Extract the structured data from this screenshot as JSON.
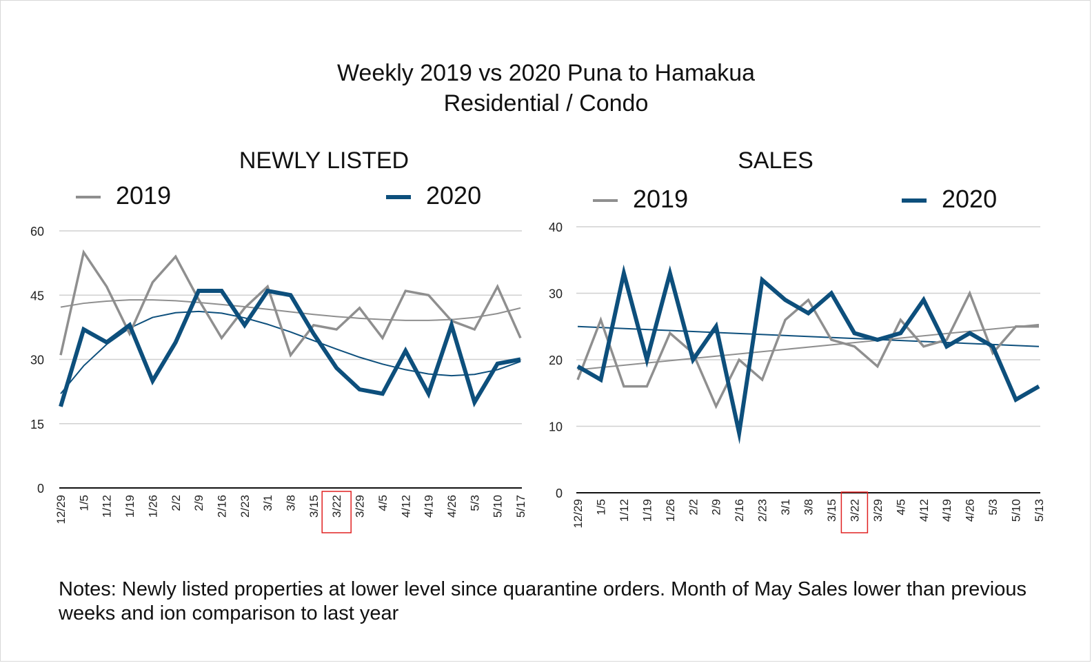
{
  "page": {
    "title_line1": "Weekly 2019 vs 2020 Puna to Hamakua",
    "title_line2": "Residential / Condo",
    "notes": "Notes: Newly listed properties at lower level since quarantine orders. Month of May Sales lower than previous weeks and ion comparison to last year"
  },
  "colors": {
    "series_2019": "#8f8f8f",
    "series_2020": "#0d4f7c",
    "grid": "#d0d0d0",
    "axis": "#111111",
    "highlight_box": "#e02020"
  },
  "chart_data": [
    {
      "type": "line",
      "title": "NEWLY LISTED",
      "categories": [
        "12/29",
        "1/5",
        "1/12",
        "1/19",
        "1/26",
        "2/2",
        "2/9",
        "2/16",
        "2/23",
        "3/1",
        "3/8",
        "3/15",
        "3/22",
        "3/29",
        "4/5",
        "4/12",
        "4/19",
        "4/26",
        "5/3",
        "5/10",
        "5/17"
      ],
      "series": [
        {
          "name": "2019",
          "values": [
            31,
            55,
            47,
            36,
            48,
            54,
            44,
            35,
            42,
            47,
            31,
            38,
            37,
            42,
            35,
            46,
            45,
            39,
            37,
            47,
            35
          ]
        },
        {
          "name": "2020",
          "values": [
            19,
            37,
            34,
            38,
            25,
            34,
            46,
            46,
            38,
            46,
            45,
            36,
            28,
            23,
            22,
            32,
            22,
            38,
            20,
            29,
            30
          ]
        }
      ],
      "trendlines": [
        {
          "series": "2019",
          "kind": "polynomial",
          "values": [
            42.2,
            43.1,
            43.6,
            43.9,
            43.9,
            43.7,
            43.3,
            42.8,
            42.3,
            41.7,
            41.1,
            40.5,
            40.0,
            39.6,
            39.3,
            39.1,
            39.1,
            39.3,
            39.8,
            40.7,
            42.0
          ]
        },
        {
          "series": "2020",
          "kind": "polynomial",
          "values": [
            22.0,
            28.5,
            33.5,
            37.3,
            39.8,
            40.9,
            41.2,
            40.8,
            39.7,
            38.2,
            36.4,
            34.4,
            32.4,
            30.5,
            28.9,
            27.6,
            26.6,
            26.2,
            26.5,
            27.6,
            29.5
          ]
        }
      ],
      "ylim": [
        0,
        60
      ],
      "yticks": [
        0,
        15,
        30,
        45,
        60
      ],
      "highlight_category": "3/22",
      "legend": "top",
      "grid": true
    },
    {
      "type": "line",
      "title": "SALES",
      "categories": [
        "12/29",
        "1/5",
        "1/12",
        "1/19",
        "1/26",
        "2/2",
        "2/9",
        "2/16",
        "2/23",
        "3/1",
        "3/8",
        "3/15",
        "3/22",
        "3/29",
        "4/5",
        "4/12",
        "4/19",
        "4/26",
        "5/3",
        "5/10",
        "5/13"
      ],
      "series": [
        {
          "name": "2019",
          "values": [
            17,
            26,
            16,
            16,
            24,
            21,
            13,
            20,
            17,
            26,
            29,
            23,
            22,
            19,
            26,
            22,
            23,
            30,
            21,
            25,
            25
          ]
        },
        {
          "name": "2020",
          "values": [
            19,
            17,
            33,
            20,
            33,
            20,
            25,
            9,
            32,
            29,
            27,
            30,
            24,
            23,
            24,
            29,
            22,
            24,
            22,
            14,
            16
          ]
        }
      ],
      "trendlines": [
        {
          "series": "2019",
          "kind": "linear",
          "start": 18.5,
          "end": 25.3
        },
        {
          "series": "2020",
          "kind": "linear",
          "start": 25.0,
          "end": 22.0
        }
      ],
      "ylim": [
        0,
        40
      ],
      "yticks": [
        0,
        10,
        20,
        30,
        40
      ],
      "highlight_category": "3/22",
      "legend": "top",
      "grid": true
    }
  ]
}
